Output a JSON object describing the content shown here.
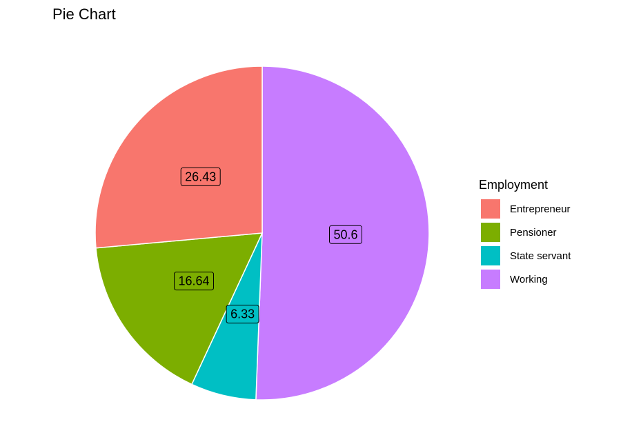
{
  "chart_data": {
    "type": "pie",
    "title": "Pie Chart",
    "legend_title": "Employment",
    "legend_position": "right",
    "categories": [
      "Entrepreneur",
      "Pensioner",
      "State servant",
      "Working"
    ],
    "values": [
      26.43,
      16.64,
      6.33,
      50.6
    ],
    "data_labels": [
      "26.43",
      "16.64",
      "6.33",
      "50.6"
    ],
    "colors": [
      "#F8766D",
      "#7CAE00",
      "#00BFC4",
      "#C77CFF"
    ],
    "slice_order_note": "clockwise from 12 o'clock: Working, State servant, Pensioner, Entrepreneur"
  }
}
